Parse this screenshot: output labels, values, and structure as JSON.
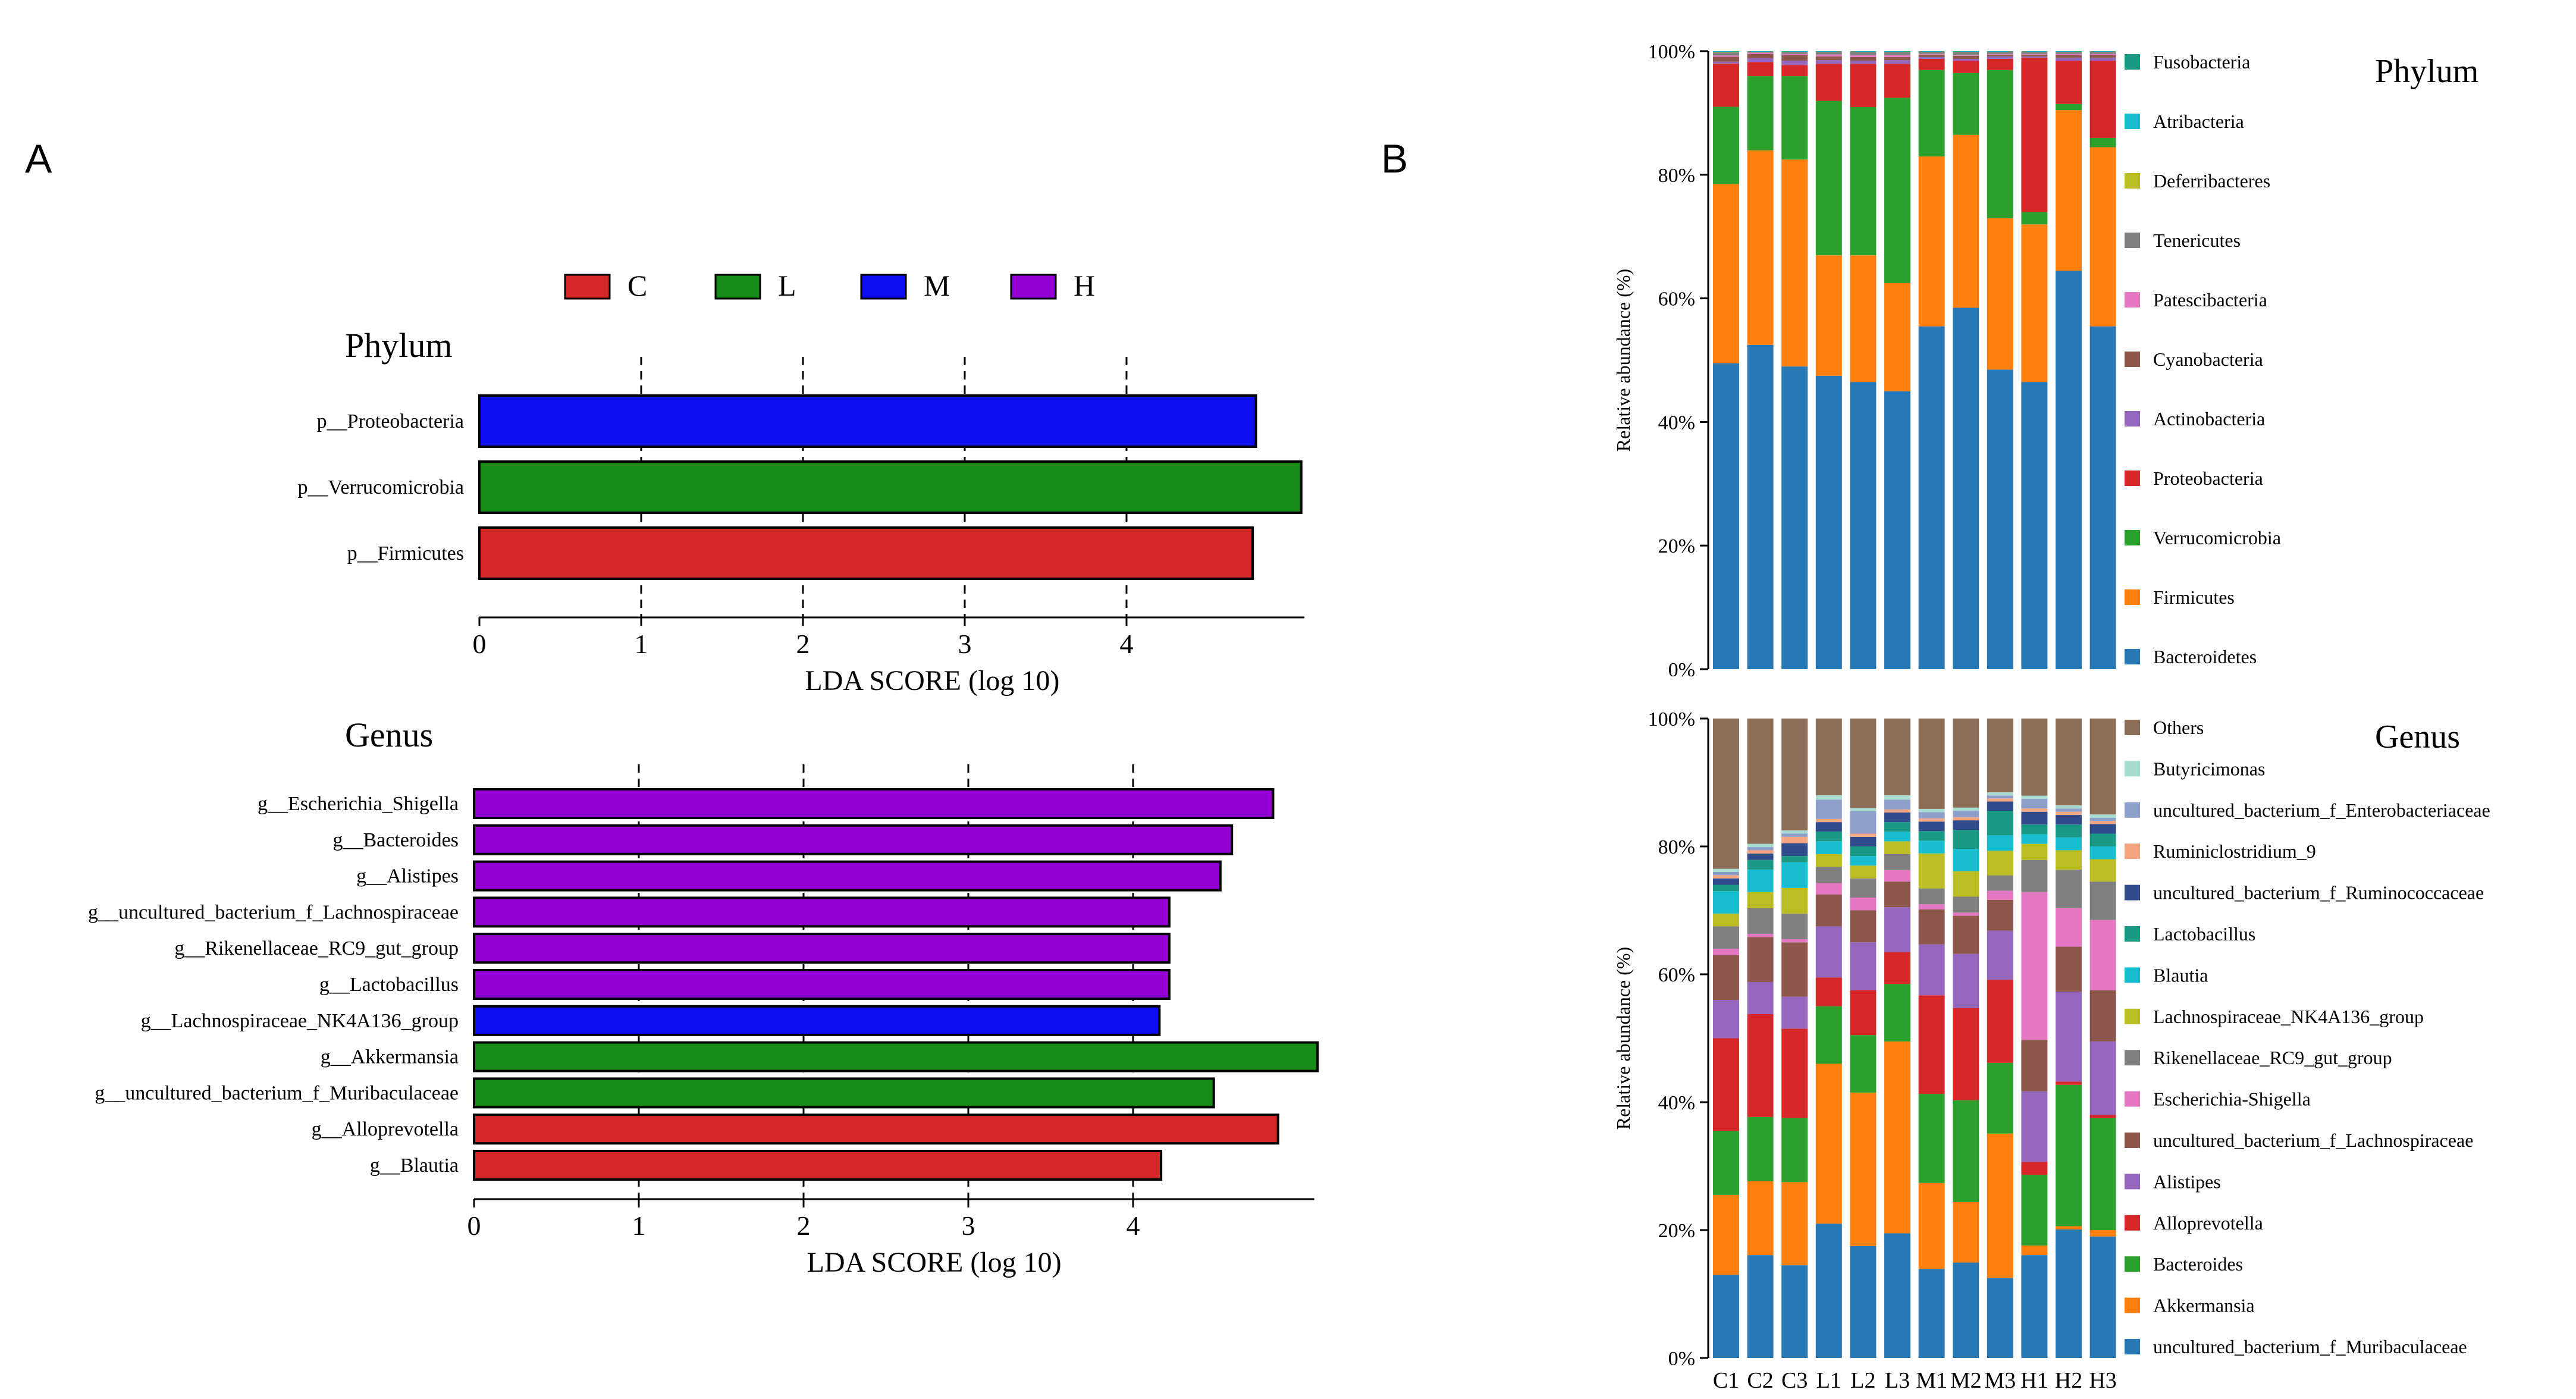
{
  "panels": {
    "a_label": "A",
    "b_label": "B"
  },
  "lefse": {
    "groups": [
      {
        "name": "C",
        "color": "#d62728"
      },
      {
        "name": "L",
        "color": "#178a17"
      },
      {
        "name": "M",
        "color": "#0d0df0"
      },
      {
        "name": "H",
        "color": "#9400d3"
      }
    ],
    "xlabel": "LDA SCORE (log 10)"
  },
  "chart_data": [
    {
      "type": "bar",
      "orientation": "horizontal",
      "title": "Phylum",
      "xlabel": "LDA SCORE (log 10)",
      "xticks": [
        0,
        1,
        2,
        3,
        4
      ],
      "xlim": [
        0,
        5.1
      ],
      "grid": "dashed vertical at ticks",
      "categories": [
        "p__Proteobacteria",
        "p__Verrucomicrobia",
        "p__Firmicutes"
      ],
      "values": [
        4.8,
        5.08,
        4.78
      ],
      "groups": [
        "M",
        "L",
        "C"
      ]
    },
    {
      "type": "bar",
      "orientation": "horizontal",
      "title": "Genus",
      "xlabel": "LDA SCORE (log 10)",
      "xticks": [
        0,
        1,
        2,
        3,
        4
      ],
      "xlim": [
        0,
        5.1
      ],
      "grid": "dashed vertical at ticks",
      "categories": [
        "g__Escherichia_Shigella",
        "g__Bacteroides",
        "g__Alistipes",
        "g__uncultured_bacterium_f_Lachnospiraceae",
        "g__Rikenellaceae_RC9_gut_group",
        "g__Lactobacillus",
        "g__Lachnospiraceae_NK4A136_group",
        "g__Akkermansia",
        "g__uncultured_bacterium_f_Muribaculaceae",
        "g__Alloprevotella",
        "g__Blautia"
      ],
      "values": [
        4.85,
        4.6,
        4.53,
        4.22,
        4.22,
        4.22,
        4.16,
        5.12,
        4.49,
        4.88,
        4.17
      ],
      "groups": [
        "H",
        "H",
        "H",
        "H",
        "H",
        "H",
        "M",
        "L",
        "L",
        "C",
        "C"
      ]
    },
    {
      "type": "bar",
      "stacked": true,
      "title": "Phylum",
      "ylabel": "Relative abundance (%)",
      "yticks": [
        "0%",
        "20%",
        "40%",
        "60%",
        "80%",
        "100%"
      ],
      "ylim": [
        0,
        100
      ],
      "legend": "right",
      "categories": [
        "C1",
        "C2",
        "C3",
        "L1",
        "L2",
        "L3",
        "M1",
        "M2",
        "M3",
        "H1",
        "H2",
        "H3"
      ],
      "series": [
        {
          "name": "Bacteroidetes",
          "color": "#2878b5",
          "values": [
            49.5,
            52.5,
            49,
            47.5,
            46.5,
            45,
            55.5,
            58.5,
            48.5,
            46.5,
            64.5,
            55.5
          ]
        },
        {
          "name": "Firmicutes",
          "color": "#ff7f0e",
          "values": [
            29,
            31.5,
            33.5,
            19.5,
            20.5,
            17.5,
            27.5,
            28,
            24.5,
            25.5,
            26,
            29
          ]
        },
        {
          "name": "Verrucomicrobia",
          "color": "#2ca02c",
          "values": [
            12.5,
            12,
            13.5,
            25,
            24,
            30,
            14,
            10,
            24,
            2,
            1,
            1.5
          ]
        },
        {
          "name": "Proteobacteria",
          "color": "#d62728",
          "values": [
            7,
            2.3,
            1.8,
            6,
            7,
            5.5,
            1.8,
            2,
            1.8,
            25,
            7,
            12.5
          ]
        },
        {
          "name": "Actinobacteria",
          "color": "#9467bd",
          "values": [
            0.3,
            0.6,
            0.7,
            0.6,
            0.5,
            0.6,
            0.3,
            0.3,
            0.4,
            0.2,
            0.5,
            0.5
          ]
        },
        {
          "name": "Cyanobacteria",
          "color": "#8c564b",
          "values": [
            0.8,
            0.7,
            0.9,
            0.6,
            0.6,
            0.5,
            0.4,
            0.5,
            0.3,
            0.3,
            0.4,
            0.4
          ]
        },
        {
          "name": "Patescibacteria",
          "color": "#e377c2",
          "values": [
            0.2,
            0.2,
            0.2,
            0.3,
            0.3,
            0.3,
            0.1,
            0.1,
            0.1,
            0.1,
            0.2,
            0.2
          ]
        },
        {
          "name": "Tenericutes",
          "color": "#7f7f7f",
          "values": [
            0.5,
            0.1,
            0.3,
            0.4,
            0.5,
            0.5,
            0.3,
            0.5,
            0.3,
            0.3,
            0.3,
            0.3
          ]
        },
        {
          "name": "Deferribacteres",
          "color": "#bcbd22",
          "values": [
            0.1,
            0.05,
            0.05,
            0.05,
            0.05,
            0.05,
            0.05,
            0.05,
            0.05,
            0.05,
            0.05,
            0.05
          ]
        },
        {
          "name": "Atribacteria",
          "color": "#17becf",
          "values": [
            0.05,
            0.05,
            0.05,
            0.05,
            0.05,
            0.05,
            0.05,
            0.05,
            0.05,
            0.05,
            0.05,
            0.05
          ]
        },
        {
          "name": "Fusobacteria",
          "color": "#1a9a85",
          "values": [
            0.05,
            0.05,
            0.05,
            0.05,
            0.05,
            0.05,
            0.05,
            0.05,
            0.05,
            0.05,
            0.05,
            0.05
          ]
        }
      ]
    },
    {
      "type": "bar",
      "stacked": true,
      "title": "Genus",
      "ylabel": "Relative abundance (%)",
      "yticks": [
        "0%",
        "20%",
        "40%",
        "60%",
        "80%",
        "100%"
      ],
      "ylim": [
        0,
        100
      ],
      "legend": "right",
      "categories": [
        "C1",
        "C2",
        "C3",
        "L1",
        "L2",
        "L3",
        "M1",
        "M2",
        "M3",
        "H1",
        "H2",
        "H3"
      ],
      "series": [
        {
          "name": "uncultured_bacterium_f_Muribaculaceae",
          "color": "#2878b5",
          "values": [
            13,
            16,
            14.5,
            21,
            17.5,
            19.5,
            14,
            15,
            13,
            16,
            20,
            19
          ]
        },
        {
          "name": "Akkermansia",
          "color": "#ff7f0e",
          "values": [
            12.5,
            11.5,
            13,
            25,
            24,
            30,
            13.5,
            9.5,
            23.5,
            1.5,
            0.5,
            1
          ]
        },
        {
          "name": "Bacteroides",
          "color": "#2ca02c",
          "values": [
            10,
            10,
            10,
            9,
            9,
            9,
            14,
            16,
            11.5,
            11,
            22,
            17.5
          ]
        },
        {
          "name": "Alloprevotella",
          "color": "#d62728",
          "values": [
            14.5,
            16,
            14,
            4.5,
            7,
            5,
            15.5,
            14.5,
            13.5,
            2,
            0.5,
            0.5
          ]
        },
        {
          "name": "Alistipes",
          "color": "#9467bd",
          "values": [
            6,
            5,
            5,
            8,
            7.5,
            7,
            8,
            8.5,
            8,
            11,
            14,
            11.5
          ]
        },
        {
          "name": "uncultured_bacterium_f_Lachnospiraceae",
          "color": "#8c564b",
          "values": [
            7,
            7,
            8.5,
            5,
            5,
            4,
            5.5,
            6,
            5,
            8,
            7,
            8
          ]
        },
        {
          "name": "Escherichia-Shigella",
          "color": "#e377c2",
          "values": [
            1,
            0.5,
            0.5,
            1.8,
            2,
            1.8,
            0.8,
            0.5,
            1.5,
            23,
            6,
            11
          ]
        },
        {
          "name": "Rikenellaceae_RC9_gut_group",
          "color": "#7f7f7f",
          "values": [
            3.5,
            4,
            4,
            2.5,
            3,
            2.5,
            2.5,
            2.5,
            2.5,
            5,
            6,
            6
          ]
        },
        {
          "name": "Lachnospiraceae_NK4A136_group",
          "color": "#bcbd22",
          "values": [
            2,
            2.5,
            4,
            2,
            2,
            2,
            5.5,
            4,
            4,
            2.5,
            3,
            3.5
          ]
        },
        {
          "name": "Blautia",
          "color": "#17becf",
          "values": [
            3.5,
            3.5,
            4,
            2,
            1.5,
            1.5,
            2,
            3.5,
            2.5,
            1.5,
            2,
            2
          ]
        },
        {
          "name": "Lactobacillus",
          "color": "#1a9a85",
          "values": [
            1,
            1.5,
            1,
            1.5,
            1.5,
            1.5,
            1.5,
            3,
            4,
            1.5,
            2,
            2
          ]
        },
        {
          "name": "uncultured_bacterium_f_Ruminococcaceae",
          "color": "#2f4b8c",
          "values": [
            1,
            1,
            2,
            1.5,
            1.5,
            1.5,
            1.5,
            1.5,
            1.5,
            2,
            1.5,
            1.5
          ]
        },
        {
          "name": "Ruminiclostridium_9",
          "color": "#f4a582",
          "values": [
            0.5,
            0.5,
            1,
            0.5,
            0.5,
            0.5,
            0.5,
            0.5,
            0.5,
            0.5,
            0.5,
            0.5
          ]
        },
        {
          "name": "uncultured_bacterium_f_Enterobacteriaceae",
          "color": "#8da0cb",
          "values": [
            0.5,
            0.5,
            0.5,
            3,
            3.5,
            1.5,
            1,
            1,
            0.5,
            1.5,
            0.5,
            0.5
          ]
        },
        {
          "name": "Butyricimonas",
          "color": "#a8dcd1",
          "values": [
            0.5,
            0.5,
            0.5,
            0.7,
            0.5,
            0.7,
            0.5,
            0.5,
            0.5,
            0.5,
            0.5,
            0.5
          ]
        },
        {
          "name": "Others",
          "color": "#8c6d55",
          "values": [
            23.5,
            19.5,
            17.5,
            12,
            14,
            12,
            14.2,
            14,
            12,
            12,
            13.5,
            15
          ]
        }
      ]
    }
  ]
}
